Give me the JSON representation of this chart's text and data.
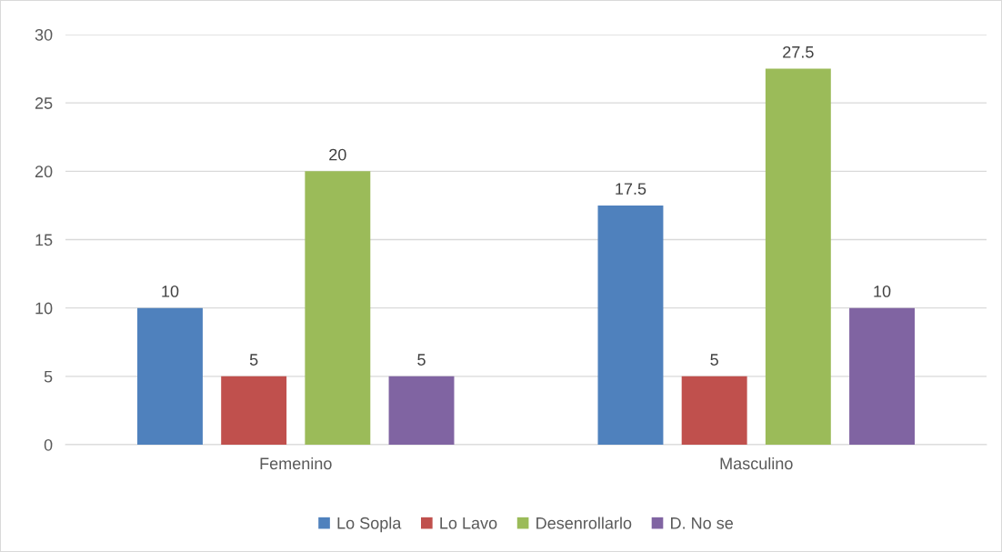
{
  "chart_data": {
    "type": "bar",
    "categories": [
      "Femenino",
      "Masculino"
    ],
    "series": [
      {
        "name": "Lo Sopla",
        "color": "#4f81bd",
        "values": [
          10,
          17.5
        ]
      },
      {
        "name": "Lo Lavo",
        "color": "#c0504d",
        "values": [
          5,
          5
        ]
      },
      {
        "name": "Desenrollarlo",
        "color": "#9bbb59",
        "values": [
          20,
          27.5
        ]
      },
      {
        "name": "D. No se",
        "color": "#8064a2",
        "values": [
          5,
          10
        ]
      }
    ],
    "ylim": [
      0,
      30
    ],
    "yticks": [
      0,
      5,
      10,
      15,
      20,
      25,
      30
    ],
    "grid": "y",
    "legend": "bottom",
    "data_labels": true
  }
}
